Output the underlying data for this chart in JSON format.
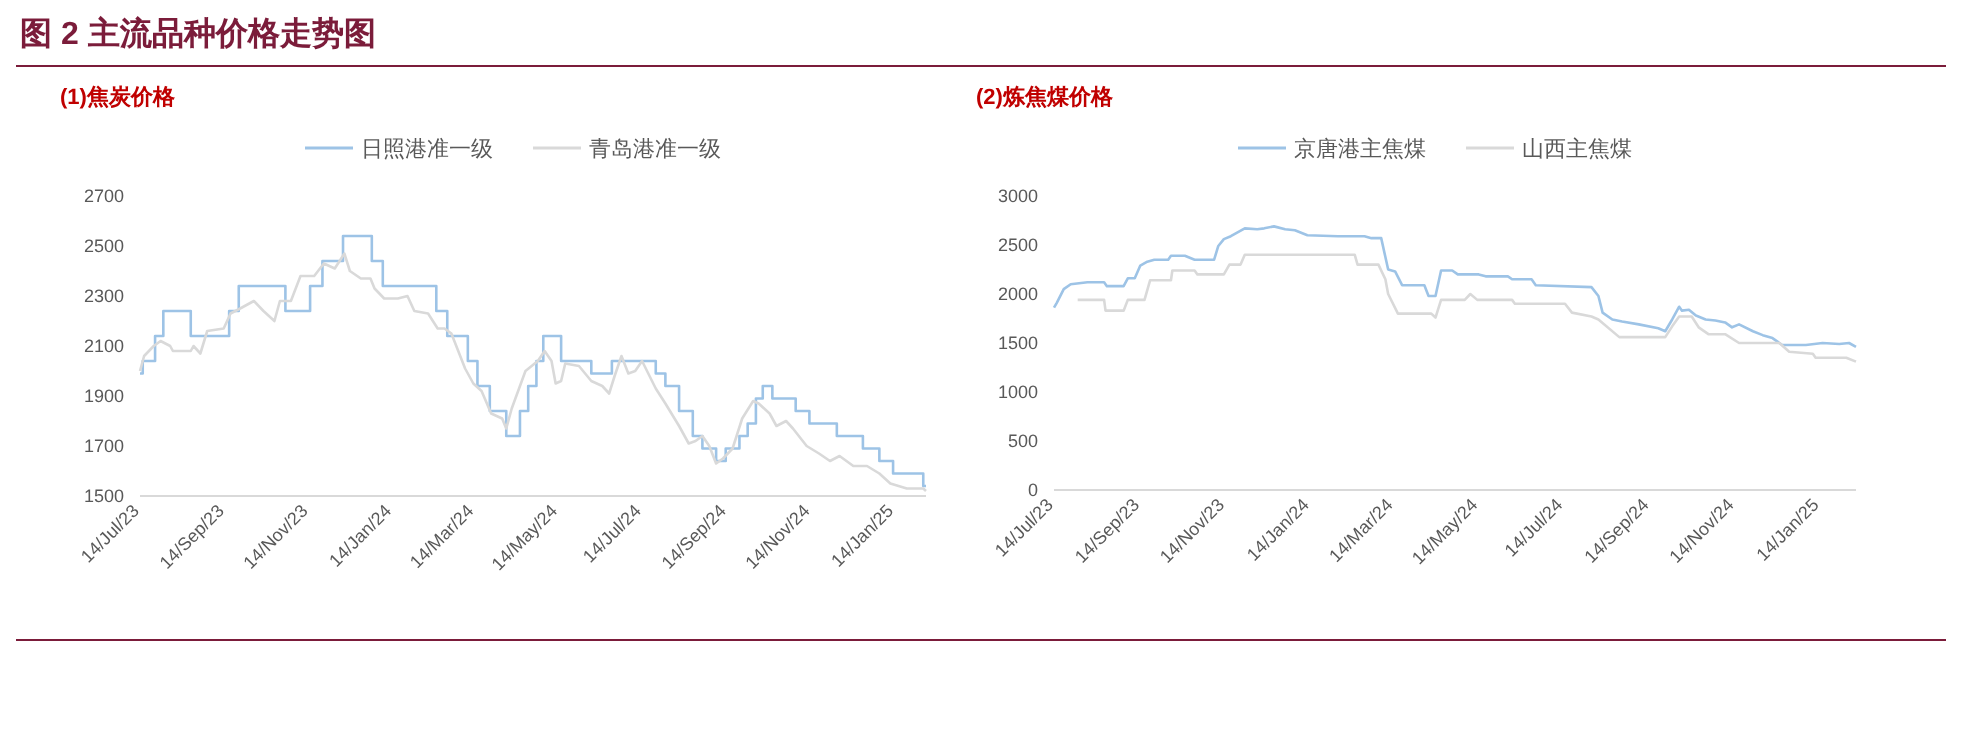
{
  "chart_data": [
    {
      "type": "line",
      "title": "(1)焦炭价格",
      "annotations": [
        "图 2 主流品种价格走势图"
      ],
      "legend": "top",
      "grid": false,
      "xlim": [
        "2023-07-14",
        "2025-02-06"
      ],
      "xticks": [
        {
          "value": "2023-07-14",
          "label": "14/Jul/23"
        },
        {
          "value": "2023-09-14",
          "label": "14/Sep/23"
        },
        {
          "value": "2023-11-14",
          "label": "14/Nov/23"
        },
        {
          "value": "2024-01-14",
          "label": "14/Jan/24"
        },
        {
          "value": "2024-03-14",
          "label": "14/Mar/24"
        },
        {
          "value": "2024-05-14",
          "label": "14/May/24"
        },
        {
          "value": "2024-07-14",
          "label": "14/Jul/24"
        },
        {
          "value": "2024-09-14",
          "label": "14/Sep/24"
        },
        {
          "value": "2024-11-14",
          "label": "14/Nov/24"
        },
        {
          "value": "2025-01-14",
          "label": "14/Jan/25"
        }
      ],
      "ylim": [
        1500,
        2700
      ],
      "yticks": [
        1500,
        1700,
        1900,
        2100,
        2300,
        2500,
        2700
      ],
      "series": [
        {
          "name": "日照港准一级",
          "type": "step",
          "color": "#9dc3e6",
          "x": [
            "2023-07-14",
            "2023-07-16",
            "2023-07-25",
            "2023-07-31",
            "2023-08-20",
            "2023-09-17",
            "2023-09-24",
            "2023-10-28",
            "2023-11-15",
            "2023-11-24",
            "2023-12-09",
            "2023-12-30",
            "2024-01-07",
            "2024-02-15",
            "2024-02-23",
            "2024-03-09",
            "2024-03-16",
            "2024-03-25",
            "2024-04-06",
            "2024-04-16",
            "2024-04-22",
            "2024-04-28",
            "2024-05-03",
            "2024-05-16",
            "2024-06-07",
            "2024-06-22",
            "2024-07-24",
            "2024-07-31",
            "2024-08-10",
            "2024-08-20",
            "2024-08-27",
            "2024-09-06",
            "2024-09-13",
            "2024-09-23",
            "2024-09-29",
            "2024-10-05",
            "2024-10-10",
            "2024-10-17",
            "2024-11-03",
            "2024-11-13",
            "2024-12-03",
            "2024-12-22",
            "2025-01-03",
            "2025-01-13",
            "2025-02-04",
            "2025-02-06"
          ],
          "values": [
            1990,
            2040,
            2140,
            2240,
            2140,
            2240,
            2340,
            2240,
            2340,
            2440,
            2540,
            2440,
            2340,
            2240,
            2140,
            2040,
            1940,
            1840,
            1740,
            1840,
            1940,
            2040,
            2140,
            2040,
            1990,
            2040,
            1990,
            1940,
            1840,
            1740,
            1690,
            1640,
            1690,
            1740,
            1790,
            1890,
            1940,
            1890,
            1840,
            1790,
            1740,
            1690,
            1640,
            1590,
            1540,
            1540
          ]
        },
        {
          "name": "青岛港准一级",
          "type": "line",
          "color": "#d9d9d9",
          "x": [
            "2023-07-14",
            "2023-07-17",
            "2023-07-24",
            "2023-07-29",
            "2023-08-05",
            "2023-08-07",
            "2023-08-20",
            "2023-08-22",
            "2023-08-27",
            "2023-09-01",
            "2023-09-13",
            "2023-09-18",
            "2023-09-25",
            "2023-10-05",
            "2023-10-12",
            "2023-10-20",
            "2023-10-24",
            "2023-11-01",
            "2023-11-08",
            "2023-11-18",
            "2023-11-25",
            "2023-12-03",
            "2023-12-10",
            "2023-12-14",
            "2023-12-22",
            "2023-12-29",
            "2024-01-01",
            "2024-01-08",
            "2024-01-18",
            "2024-01-25",
            "2024-01-30",
            "2024-02-09",
            "2024-02-16",
            "2024-02-21",
            "2024-02-26",
            "2024-03-07",
            "2024-03-13",
            "2024-03-19",
            "2024-03-26",
            "2024-04-03",
            "2024-04-06",
            "2024-04-10",
            "2024-04-20",
            "2024-04-29",
            "2024-05-04",
            "2024-05-09",
            "2024-05-12",
            "2024-05-16",
            "2024-05-19",
            "2024-05-29",
            "2024-06-07",
            "2024-06-15",
            "2024-06-20",
            "2024-06-24",
            "2024-06-29",
            "2024-07-04",
            "2024-07-09",
            "2024-07-14",
            "2024-07-24",
            "2024-07-31",
            "2024-08-10",
            "2024-08-17",
            "2024-08-22",
            "2024-08-27",
            "2024-09-01",
            "2024-09-06",
            "2024-09-11",
            "2024-09-18",
            "2024-09-25",
            "2024-10-03",
            "2024-10-07",
            "2024-10-15",
            "2024-10-20",
            "2024-10-27",
            "2024-11-01",
            "2024-11-11",
            "2024-11-20",
            "2024-11-28",
            "2024-12-05",
            "2024-12-15",
            "2024-12-25",
            "2025-01-03",
            "2025-01-11",
            "2025-01-23",
            "2025-02-04",
            "2025-02-06"
          ],
          "values": [
            2000,
            2060,
            2100,
            2120,
            2100,
            2080,
            2080,
            2100,
            2070,
            2160,
            2170,
            2230,
            2250,
            2280,
            2240,
            2200,
            2280,
            2280,
            2380,
            2380,
            2430,
            2410,
            2470,
            2400,
            2370,
            2370,
            2330,
            2290,
            2290,
            2300,
            2240,
            2230,
            2170,
            2170,
            2150,
            2010,
            1950,
            1920,
            1830,
            1810,
            1770,
            1850,
            2000,
            2040,
            2080,
            2040,
            1950,
            1960,
            2030,
            2020,
            1960,
            1940,
            1910,
            1980,
            2060,
            1990,
            2000,
            2040,
            1930,
            1870,
            1780,
            1710,
            1720,
            1740,
            1700,
            1630,
            1650,
            1690,
            1810,
            1880,
            1870,
            1830,
            1780,
            1800,
            1770,
            1700,
            1670,
            1640,
            1660,
            1620,
            1620,
            1590,
            1550,
            1530,
            1530,
            1520
          ]
        }
      ]
    },
    {
      "type": "line",
      "title": "(2)炼焦煤价格",
      "legend": "top",
      "grid": false,
      "xlim": [
        "2023-07-14",
        "2025-02-09"
      ],
      "xticks": [
        {
          "value": "2023-07-14",
          "label": "14/Jul/23"
        },
        {
          "value": "2023-09-14",
          "label": "14/Sep/23"
        },
        {
          "value": "2023-11-14",
          "label": "14/Nov/23"
        },
        {
          "value": "2024-01-14",
          "label": "14/Jan/24"
        },
        {
          "value": "2024-03-14",
          "label": "14/Mar/24"
        },
        {
          "value": "2024-05-14",
          "label": "14/May/24"
        },
        {
          "value": "2024-07-14",
          "label": "14/Jul/24"
        },
        {
          "value": "2024-09-14",
          "label": "14/Sep/24"
        },
        {
          "value": "2024-11-14",
          "label": "14/Nov/24"
        },
        {
          "value": "2025-01-14",
          "label": "14/Jan/25"
        }
      ],
      "ylim": [
        0,
        3000
      ],
      "yticks": [
        0,
        500,
        1000,
        1500,
        2000,
        2500,
        3000
      ],
      "series": [
        {
          "name": "京唐港主焦煤",
          "type": "line",
          "color": "#9dc3e6",
          "x": [
            "2023-07-14",
            "2023-07-16",
            "2023-07-21",
            "2023-07-26",
            "2023-08-07",
            "2023-08-19",
            "2023-08-21",
            "2023-09-02",
            "2023-09-05",
            "2023-09-10",
            "2023-09-14",
            "2023-09-19",
            "2023-09-24",
            "2023-10-04",
            "2023-10-06",
            "2023-10-16",
            "2023-10-23",
            "2023-11-06",
            "2023-11-09",
            "2023-11-13",
            "2023-11-18",
            "2023-11-28",
            "2023-12-07",
            "2023-12-12",
            "2023-12-19",
            "2023-12-27",
            "2024-01-03",
            "2024-01-12",
            "2024-02-03",
            "2024-02-22",
            "2024-02-27",
            "2024-03-05",
            "2024-03-10",
            "2024-03-15",
            "2024-03-20",
            "2024-04-05",
            "2024-04-08",
            "2024-04-13",
            "2024-04-17",
            "2024-04-25",
            "2024-04-29",
            "2024-05-14",
            "2024-05-19",
            "2024-06-04",
            "2024-06-07",
            "2024-06-21",
            "2024-06-24",
            "2024-08-03",
            "2024-08-08",
            "2024-08-11",
            "2024-08-18",
            "2024-08-25",
            "2024-09-06",
            "2024-09-20",
            "2024-09-25",
            "2024-09-30",
            "2024-10-05",
            "2024-10-07",
            "2024-10-12",
            "2024-10-17",
            "2024-10-24",
            "2024-10-31",
            "2024-11-07",
            "2024-11-12",
            "2024-11-17",
            "2024-11-27",
            "2024-12-04",
            "2024-12-11",
            "2024-12-18",
            "2025-01-04",
            "2025-01-16",
            "2025-01-28",
            "2025-02-04",
            "2025-02-09"
          ],
          "values": [
            1860,
            1910,
            2050,
            2100,
            2120,
            2120,
            2080,
            2080,
            2160,
            2160,
            2290,
            2330,
            2350,
            2350,
            2390,
            2390,
            2350,
            2350,
            2490,
            2560,
            2590,
            2670,
            2660,
            2670,
            2690,
            2660,
            2650,
            2600,
            2590,
            2590,
            2570,
            2570,
            2250,
            2230,
            2090,
            2090,
            1980,
            1980,
            2240,
            2240,
            2200,
            2200,
            2180,
            2180,
            2150,
            2150,
            2090,
            2070,
            1980,
            1810,
            1740,
            1720,
            1690,
            1650,
            1620,
            1740,
            1870,
            1830,
            1840,
            1780,
            1740,
            1730,
            1710,
            1660,
            1690,
            1620,
            1580,
            1550,
            1480,
            1480,
            1500,
            1490,
            1500,
            1460
          ]
        },
        {
          "name": "山西主焦煤",
          "type": "line",
          "color": "#d9d9d9",
          "x": [
            "2023-07-31",
            "2023-08-19",
            "2023-08-20",
            "2023-09-02",
            "2023-09-05",
            "2023-09-17",
            "2023-09-21",
            "2023-10-06",
            "2023-10-07",
            "2023-10-23",
            "2023-10-25",
            "2023-11-13",
            "2023-11-17",
            "2023-11-25",
            "2023-11-28",
            "2024-02-15",
            "2024-02-17",
            "2024-03-03",
            "2024-03-08",
            "2024-03-10",
            "2024-03-17",
            "2024-04-10",
            "2024-04-13",
            "2024-04-17",
            "2024-05-04",
            "2024-05-08",
            "2024-05-13",
            "2024-06-07",
            "2024-06-09",
            "2024-07-15",
            "2024-07-20",
            "2024-08-03",
            "2024-08-08",
            "2024-08-23",
            "2024-09-25",
            "2024-09-30",
            "2024-10-05",
            "2024-10-14",
            "2024-10-19",
            "2024-10-26",
            "2024-11-07",
            "2024-11-17",
            "2024-12-16",
            "2024-12-23",
            "2025-01-09",
            "2025-01-11",
            "2025-02-02",
            "2025-02-09"
          ],
          "values": [
            1940,
            1940,
            1830,
            1830,
            1940,
            1940,
            2140,
            2140,
            2240,
            2240,
            2200,
            2200,
            2300,
            2300,
            2400,
            2400,
            2300,
            2300,
            2150,
            2000,
            1800,
            1800,
            1760,
            1940,
            1940,
            2000,
            1940,
            1940,
            1900,
            1900,
            1810,
            1770,
            1740,
            1560,
            1560,
            1670,
            1770,
            1770,
            1660,
            1590,
            1590,
            1500,
            1500,
            1410,
            1390,
            1350,
            1350,
            1310
          ]
        }
      ]
    }
  ]
}
